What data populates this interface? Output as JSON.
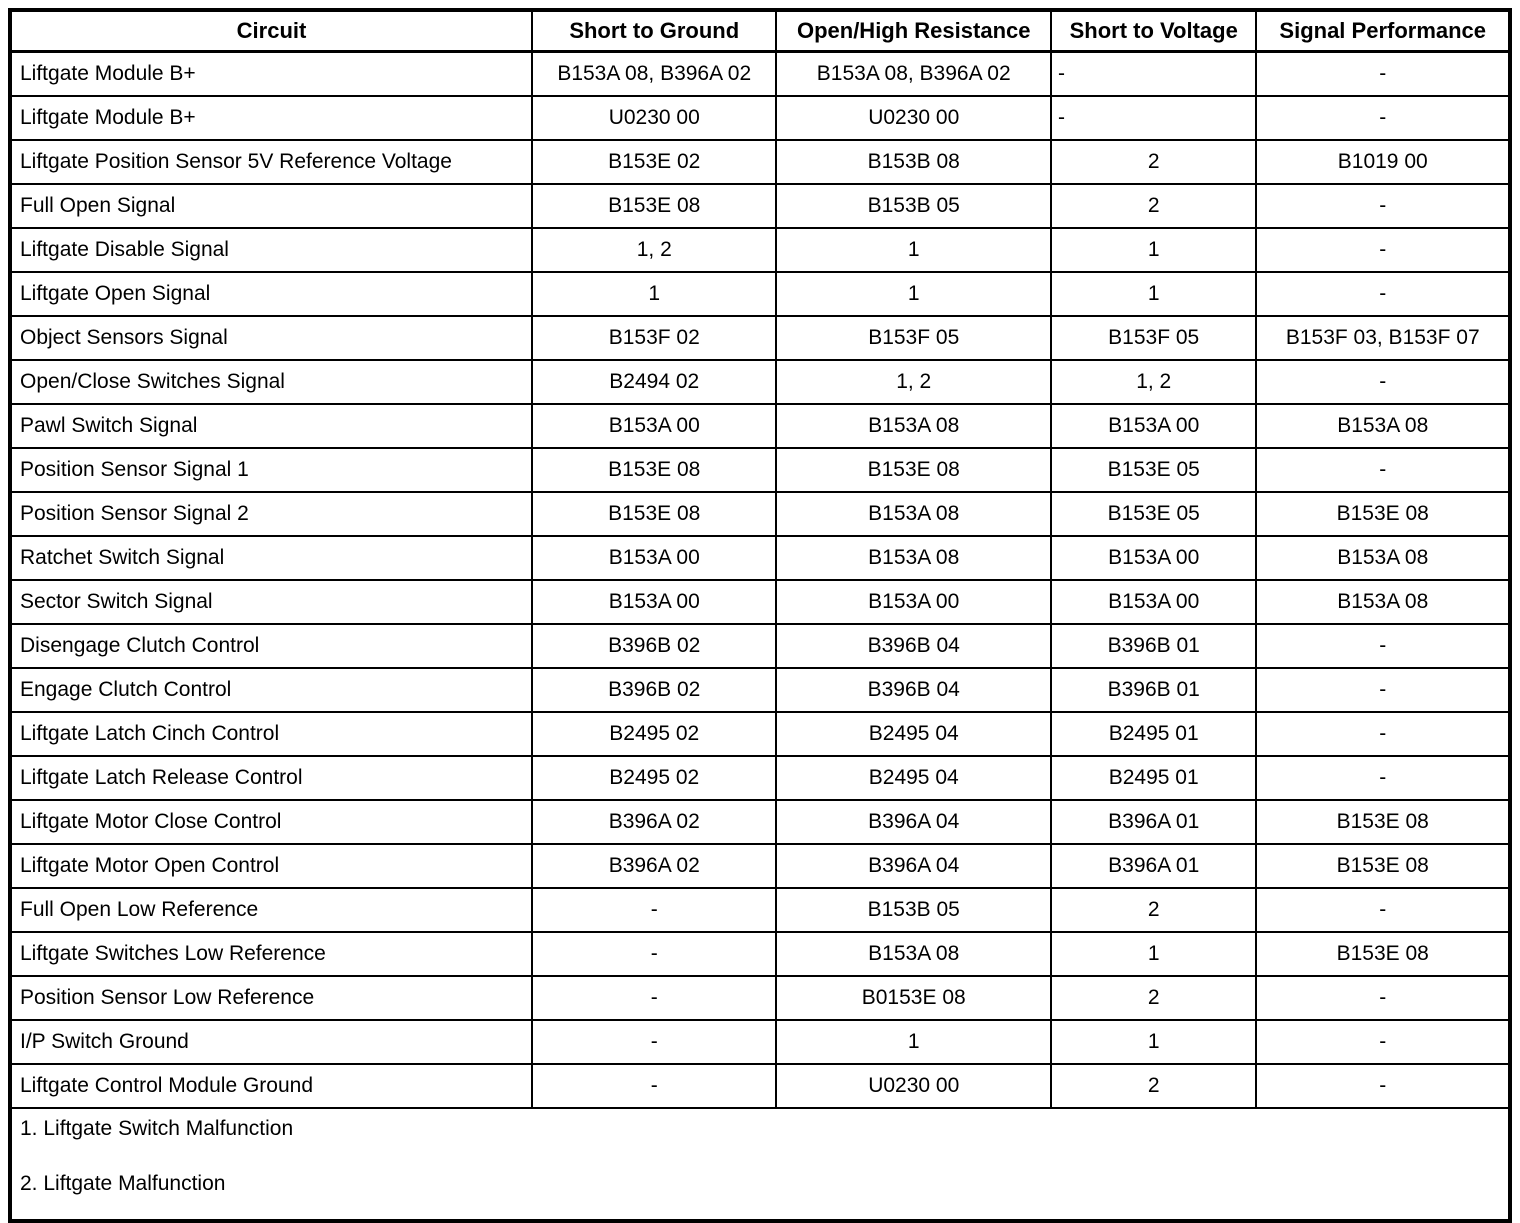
{
  "table": {
    "headers": [
      "Circuit",
      "Short to Ground",
      "Open/High Resistance",
      "Short to Voltage",
      "Signal Performance"
    ],
    "rows": [
      {
        "circuit": "Liftgate Module B+",
        "short_to_ground": "B153A 08, B396A 02",
        "open_high_resistance": "B153A 08, B396A 02",
        "short_to_voltage": "-",
        "signal_performance": "-"
      },
      {
        "circuit": "Liftgate Module B+",
        "short_to_ground": "U0230 00",
        "open_high_resistance": "U0230 00",
        "short_to_voltage": "-",
        "signal_performance": "-"
      },
      {
        "circuit": "Liftgate Position Sensor 5V Reference Voltage",
        "short_to_ground": "B153E 02",
        "open_high_resistance": "B153B 08",
        "short_to_voltage": "2",
        "signal_performance": "B1019 00"
      },
      {
        "circuit": "Full Open Signal",
        "short_to_ground": "B153E 08",
        "open_high_resistance": "B153B 05",
        "short_to_voltage": "2",
        "signal_performance": "-"
      },
      {
        "circuit": "Liftgate Disable Signal",
        "short_to_ground": "1, 2",
        "open_high_resistance": "1",
        "short_to_voltage": "1",
        "signal_performance": "-"
      },
      {
        "circuit": "Liftgate Open Signal",
        "short_to_ground": "1",
        "open_high_resistance": "1",
        "short_to_voltage": "1",
        "signal_performance": "-"
      },
      {
        "circuit": "Object Sensors Signal",
        "short_to_ground": "B153F 02",
        "open_high_resistance": "B153F 05",
        "short_to_voltage": "B153F 05",
        "signal_performance": "B153F 03, B153F 07"
      },
      {
        "circuit": "Open/Close Switches Signal",
        "short_to_ground": "B2494 02",
        "open_high_resistance": "1, 2",
        "short_to_voltage": "1, 2",
        "signal_performance": "-"
      },
      {
        "circuit": "Pawl Switch Signal",
        "short_to_ground": "B153A 00",
        "open_high_resistance": "B153A 08",
        "short_to_voltage": "B153A 00",
        "signal_performance": "B153A 08"
      },
      {
        "circuit": "Position Sensor Signal 1",
        "short_to_ground": "B153E 08",
        "open_high_resistance": "B153E 08",
        "short_to_voltage": "B153E 05",
        "signal_performance": "-"
      },
      {
        "circuit": "Position Sensor Signal 2",
        "short_to_ground": "B153E 08",
        "open_high_resistance": "B153A 08",
        "short_to_voltage": "B153E 05",
        "signal_performance": "B153E 08"
      },
      {
        "circuit": "Ratchet Switch Signal",
        "short_to_ground": "B153A 00",
        "open_high_resistance": "B153A 08",
        "short_to_voltage": "B153A 00",
        "signal_performance": "B153A 08"
      },
      {
        "circuit": "Sector Switch Signal",
        "short_to_ground": "B153A 00",
        "open_high_resistance": "B153A 00",
        "short_to_voltage": "B153A 00",
        "signal_performance": "B153A 08"
      },
      {
        "circuit": "Disengage Clutch Control",
        "short_to_ground": "B396B 02",
        "open_high_resistance": "B396B 04",
        "short_to_voltage": "B396B 01",
        "signal_performance": "-"
      },
      {
        "circuit": "Engage Clutch Control",
        "short_to_ground": "B396B 02",
        "open_high_resistance": "B396B 04",
        "short_to_voltage": "B396B 01",
        "signal_performance": "-"
      },
      {
        "circuit": "Liftgate Latch Cinch Control",
        "short_to_ground": "B2495 02",
        "open_high_resistance": "B2495 04",
        "short_to_voltage": "B2495 01",
        "signal_performance": "-"
      },
      {
        "circuit": "Liftgate Latch Release Control",
        "short_to_ground": "B2495 02",
        "open_high_resistance": "B2495 04",
        "short_to_voltage": "B2495 01",
        "signal_performance": "-"
      },
      {
        "circuit": "Liftgate Motor Close Control",
        "short_to_ground": "B396A 02",
        "open_high_resistance": "B396A 04",
        "short_to_voltage": "B396A 01",
        "signal_performance": "B153E 08"
      },
      {
        "circuit": "Liftgate Motor Open Control",
        "short_to_ground": "B396A 02",
        "open_high_resistance": "B396A 04",
        "short_to_voltage": "B396A 01",
        "signal_performance": "B153E 08"
      },
      {
        "circuit": "Full Open Low Reference",
        "short_to_ground": "-",
        "open_high_resistance": "B153B 05",
        "short_to_voltage": "2",
        "signal_performance": "-"
      },
      {
        "circuit": "Liftgate Switches Low Reference",
        "short_to_ground": "-",
        "open_high_resistance": "B153A 08",
        "short_to_voltage": "1",
        "signal_performance": "B153E 08"
      },
      {
        "circuit": "Position Sensor Low Reference",
        "short_to_ground": "-",
        "open_high_resistance": "B0153E 08",
        "short_to_voltage": "2",
        "signal_performance": "-"
      },
      {
        "circuit": "I/P Switch Ground",
        "short_to_ground": "-",
        "open_high_resistance": "1",
        "short_to_voltage": "1",
        "signal_performance": "-"
      },
      {
        "circuit": "Liftgate Control Module Ground",
        "short_to_ground": "-",
        "open_high_resistance": "U0230 00",
        "short_to_voltage": "2",
        "signal_performance": "-"
      }
    ],
    "footnotes": [
      "1. Liftgate Switch Malfunction",
      "2. Liftgate Malfunction"
    ]
  },
  "colors": {
    "border": "#000000",
    "text": "#000000",
    "background": "#ffffff"
  }
}
